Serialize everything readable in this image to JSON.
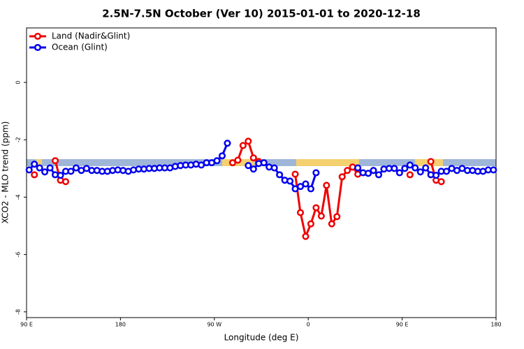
{
  "chart_data": {
    "type": "line",
    "title": "2.5N-7.5N October (Ver 10)   2015-01-01 to 2020-12-18",
    "x_label": "Longitude (deg E)",
    "y_label": "XCO2 - MLO trend (ppm)",
    "xlim": [
      90,
      540
    ],
    "xticks": [
      {
        "value": 90,
        "label": "90 E"
      },
      180,
      {
        "value": 270,
        "label": "90 W"
      },
      {
        "value": 360,
        "label": "0"
      },
      {
        "value": 450,
        "label": "90 E"
      },
      {
        "value": 540,
        "label": "180"
      }
    ],
    "ylim": [
      -8.2,
      1.9
    ],
    "yticks": [
      0,
      -2,
      -4,
      -6,
      -8
    ],
    "legend": "top-left",
    "series": [
      {
        "name": "Land (Nadir&Glint)",
        "color": "#ee0000",
        "x": [
          97.5,
          102.5,
          117.5,
          122.5,
          127.5,
          132.5,
          287.5,
          292.5,
          297.5,
          302.5,
          307.5,
          312.5,
          317.5,
          347.5,
          352.5,
          357.5,
          362.5,
          367.5,
          372.5,
          377.5,
          382.5,
          387.5,
          392.5,
          397.5,
          402.5,
          407.5,
          412.5,
          457.5,
          462.5,
          477.5,
          482.5,
          487.5
        ],
        "values": [
          -3.22,
          null,
          -2.73,
          -3.41,
          -3.46,
          null,
          -2.8,
          -2.71,
          -2.2,
          -2.05,
          -2.63,
          -2.76,
          null,
          -3.2,
          -4.54,
          -5.37,
          -4.93,
          -4.37,
          -4.66,
          -3.59,
          -4.93,
          -4.68,
          -3.29,
          -3.07,
          -2.95,
          -3.2,
          null,
          -3.22,
          null,
          -2.76,
          -3.41,
          -3.46
        ]
      },
      {
        "name": "Ocean (Glint)",
        "color": "#0000ee",
        "x": [
          92.5,
          97.5,
          102.5,
          107.5,
          112.5,
          117.5,
          122.5,
          127.5,
          132.5,
          137.5,
          142.5,
          147.5,
          152.5,
          157.5,
          162.5,
          167.5,
          172.5,
          177.5,
          182.5,
          187.5,
          192.5,
          197.5,
          202.5,
          207.5,
          212.5,
          217.5,
          222.5,
          227.5,
          232.5,
          237.5,
          242.5,
          247.5,
          252.5,
          257.5,
          262.5,
          267.5,
          272.5,
          277.5,
          282.5,
          287.5,
          302.5,
          307.5,
          312.5,
          317.5,
          322.5,
          327.5,
          332.5,
          337.5,
          342.5,
          347.5,
          352.5,
          357.5,
          362.5,
          367.5,
          372.5,
          407.5,
          412.5,
          417.5,
          422.5,
          427.5,
          432.5,
          437.5,
          442.5,
          447.5,
          452.5,
          457.5,
          462.5,
          467.5,
          472.5,
          477.5,
          482.5,
          487.5,
          492.5,
          497.5,
          502.5,
          507.5,
          512.5,
          517.5,
          522.5,
          527.5,
          532.5,
          537.5
        ],
        "values": [
          -3.05,
          -2.85,
          -2.98,
          -3.12,
          -2.98,
          -3.22,
          -3.24,
          -3.1,
          -3.1,
          -2.98,
          -3.07,
          -3.0,
          -3.07,
          -3.07,
          -3.1,
          -3.1,
          -3.07,
          -3.05,
          -3.07,
          -3.1,
          -3.05,
          -3.02,
          -3.02,
          -3.0,
          -3.0,
          -2.98,
          -2.98,
          -2.98,
          -2.93,
          -2.9,
          -2.88,
          -2.88,
          -2.85,
          -2.88,
          -2.8,
          -2.8,
          -2.73,
          -2.56,
          -2.12,
          null,
          -2.9,
          -3.02,
          -2.83,
          -2.8,
          -2.95,
          -2.98,
          -3.22,
          -3.41,
          -3.44,
          -3.71,
          -3.63,
          -3.54,
          -3.71,
          -3.15,
          null,
          -2.98,
          -3.15,
          -3.17,
          -3.07,
          -3.22,
          -3.02,
          -3.0,
          -3.0,
          -3.15,
          -3.0,
          -2.88,
          -2.98,
          -3.12,
          -2.98,
          -3.22,
          -3.24,
          -3.1,
          -3.1,
          -3.0,
          -3.07,
          -3.0,
          -3.07,
          -3.07,
          -3.1,
          -3.1,
          -3.05,
          -3.05
        ]
      }
    ]
  }
}
